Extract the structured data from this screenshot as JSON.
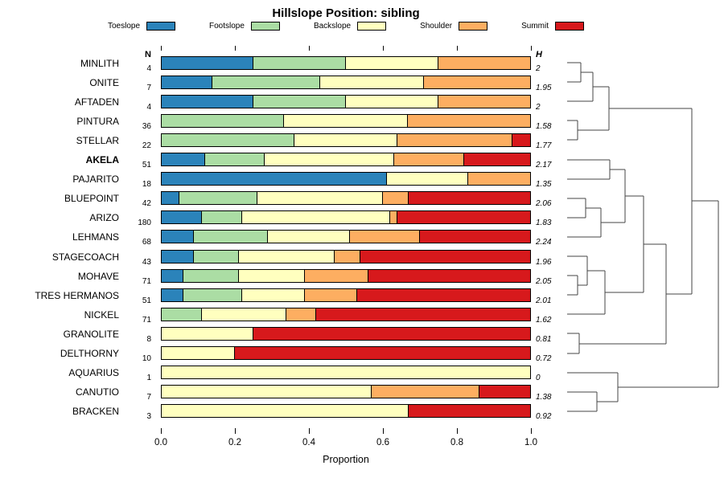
{
  "title": "Hillslope Position: sibling",
  "legend": {
    "items": [
      {
        "label": "Toeslope",
        "color": "#2B83BA"
      },
      {
        "label": "Footslope",
        "color": "#ABDDA4"
      },
      {
        "label": "Backslope",
        "color": "#FFFFBF"
      },
      {
        "label": "Shoulder",
        "color": "#FDAE61"
      },
      {
        "label": "Summit",
        "color": "#D7191C"
      }
    ]
  },
  "columns": {
    "n": "N",
    "h": "H"
  },
  "chart_data": {
    "type": "bar",
    "stacked": true,
    "orientation": "horizontal",
    "title": "Hillslope Position: sibling",
    "xlabel": "Proportion",
    "xlim": [
      0.0,
      1.0
    ],
    "x_ticks": [
      "0.0",
      "0.2",
      "0.4",
      "0.6",
      "0.8",
      "1.0"
    ],
    "series_names": [
      "Toeslope",
      "Footslope",
      "Backslope",
      "Shoulder",
      "Summit"
    ],
    "rows": [
      {
        "name": "MINLITH",
        "n": 4,
        "h": "2",
        "bold": false,
        "values": [
          0.25,
          0.25,
          0.25,
          0.25,
          0
        ]
      },
      {
        "name": "ONITE",
        "n": 7,
        "h": "1.95",
        "bold": false,
        "values": [
          0.14,
          0.29,
          0.28,
          0.29,
          0
        ]
      },
      {
        "name": "AFTADEN",
        "n": 4,
        "h": "2",
        "bold": false,
        "values": [
          0.25,
          0.25,
          0.25,
          0.25,
          0
        ]
      },
      {
        "name": "PINTURA",
        "n": 36,
        "h": "1.58",
        "bold": false,
        "values": [
          0,
          0.333,
          0.334,
          0.333,
          0
        ]
      },
      {
        "name": "STELLAR",
        "n": 22,
        "h": "1.77",
        "bold": false,
        "values": [
          0,
          0.36,
          0.28,
          0.31,
          0.05
        ]
      },
      {
        "name": "AKELA",
        "n": 51,
        "h": "2.17",
        "bold": true,
        "values": [
          0.12,
          0.16,
          0.35,
          0.19,
          0.18
        ]
      },
      {
        "name": "PAJARITO",
        "n": 18,
        "h": "1.35",
        "bold": false,
        "values": [
          0.61,
          0,
          0.22,
          0.17,
          0
        ]
      },
      {
        "name": "BLUEPOINT",
        "n": 42,
        "h": "2.06",
        "bold": false,
        "values": [
          0.05,
          0.21,
          0.34,
          0.07,
          0.33
        ]
      },
      {
        "name": "ARIZO",
        "n": 180,
        "h": "1.83",
        "bold": false,
        "values": [
          0.11,
          0.11,
          0.4,
          0.02,
          0.36
        ]
      },
      {
        "name": "LEHMANS",
        "n": 68,
        "h": "2.24",
        "bold": false,
        "values": [
          0.09,
          0.2,
          0.22,
          0.19,
          0.3
        ]
      },
      {
        "name": "STAGECOACH",
        "n": 43,
        "h": "1.96",
        "bold": false,
        "values": [
          0.09,
          0.12,
          0.26,
          0.07,
          0.46
        ]
      },
      {
        "name": "MOHAVE",
        "n": 71,
        "h": "2.05",
        "bold": false,
        "values": [
          0.06,
          0.15,
          0.18,
          0.17,
          0.44
        ]
      },
      {
        "name": "TRES HERMANOS",
        "n": 51,
        "h": "2.01",
        "bold": false,
        "values": [
          0.06,
          0.16,
          0.17,
          0.14,
          0.47
        ]
      },
      {
        "name": "NICKEL",
        "n": 71,
        "h": "1.62",
        "bold": false,
        "values": [
          0,
          0.11,
          0.23,
          0.08,
          0.58
        ]
      },
      {
        "name": "GRANOLITE",
        "n": 8,
        "h": "0.81",
        "bold": false,
        "values": [
          0,
          0,
          0.25,
          0,
          0.75
        ]
      },
      {
        "name": "DELTHORNY",
        "n": 10,
        "h": "0.72",
        "bold": false,
        "values": [
          0,
          0,
          0.2,
          0,
          0.8
        ]
      },
      {
        "name": "AQUARIUS",
        "n": 1,
        "h": "0",
        "bold": false,
        "values": [
          0,
          0,
          1.0,
          0,
          0
        ]
      },
      {
        "name": "CANUTIO",
        "n": 7,
        "h": "1.38",
        "bold": false,
        "values": [
          0,
          0,
          0.57,
          0.29,
          0.14
        ]
      },
      {
        "name": "BRACKEN",
        "n": 3,
        "h": "0.92",
        "bold": false,
        "values": [
          0,
          0,
          0.67,
          0,
          0.33
        ]
      }
    ]
  },
  "dendrogram": {
    "stroke": "#444444",
    "segments": [
      [
        10,
        78,
        27,
        78
      ],
      [
        10,
        102,
        27,
        102
      ],
      [
        27,
        78,
        27,
        102
      ],
      [
        27,
        90,
        42,
        90
      ],
      [
        10,
        126,
        42,
        126
      ],
      [
        42,
        90,
        42,
        126
      ],
      [
        10,
        150,
        23,
        150
      ],
      [
        10,
        174,
        23,
        174
      ],
      [
        23,
        150,
        23,
        174
      ],
      [
        42,
        108,
        62,
        108
      ],
      [
        23,
        162,
        62,
        162
      ],
      [
        62,
        108,
        62,
        162
      ],
      [
        62,
        135,
        165,
        135
      ],
      [
        10,
        199,
        63,
        199
      ],
      [
        10,
        223,
        63,
        223
      ],
      [
        63,
        199,
        63,
        223
      ],
      [
        10,
        247,
        33,
        247
      ],
      [
        10,
        271,
        33,
        271
      ],
      [
        33,
        247,
        33,
        271
      ],
      [
        33,
        259,
        52,
        259
      ],
      [
        10,
        295,
        52,
        295
      ],
      [
        52,
        259,
        52,
        295
      ],
      [
        63,
        211,
        82,
        211
      ],
      [
        52,
        277,
        82,
        277
      ],
      [
        82,
        211,
        82,
        277
      ],
      [
        10,
        343,
        23,
        343
      ],
      [
        10,
        367,
        23,
        367
      ],
      [
        23,
        343,
        23,
        367
      ],
      [
        23,
        355,
        35,
        355
      ],
      [
        10,
        319,
        35,
        319
      ],
      [
        35,
        319,
        35,
        355
      ],
      [
        35,
        337,
        57,
        337
      ],
      [
        10,
        391,
        57,
        391
      ],
      [
        57,
        337,
        57,
        391
      ],
      [
        82,
        244,
        105,
        244
      ],
      [
        57,
        364,
        105,
        364
      ],
      [
        105,
        244,
        105,
        364
      ],
      [
        10,
        415,
        25,
        415
      ],
      [
        10,
        440,
        25,
        440
      ],
      [
        25,
        415,
        25,
        440
      ],
      [
        105,
        304,
        133,
        304
      ],
      [
        25,
        428,
        133,
        428
      ],
      [
        133,
        304,
        133,
        428
      ],
      [
        133,
        366,
        165,
        366
      ],
      [
        165,
        135,
        165,
        366
      ],
      [
        10,
        488,
        47,
        488
      ],
      [
        10,
        512,
        47,
        512
      ],
      [
        47,
        488,
        47,
        512
      ],
      [
        47,
        500,
        73,
        500
      ],
      [
        10,
        464,
        73,
        464
      ],
      [
        73,
        464,
        73,
        500
      ],
      [
        165,
        250,
        198,
        250
      ],
      [
        73,
        482,
        198,
        482
      ],
      [
        198,
        250,
        198,
        482
      ]
    ]
  }
}
